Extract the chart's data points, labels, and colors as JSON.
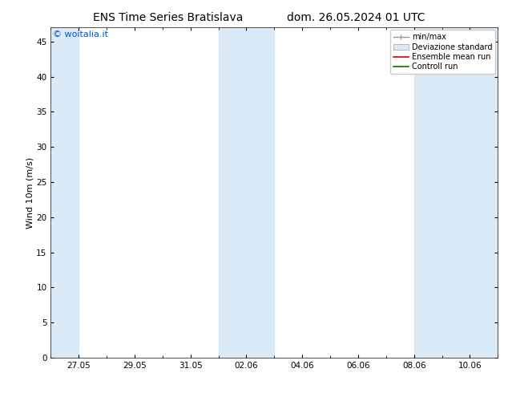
{
  "title": "ENS Time Series Bratislava",
  "title2": "dom. 26.05.2024 01 UTC",
  "ylabel": "Wind 10m (m/s)",
  "ylim": [
    0,
    47
  ],
  "yticks": [
    0,
    5,
    10,
    15,
    20,
    25,
    30,
    35,
    40,
    45
  ],
  "xtick_labels": [
    "27.05",
    "29.05",
    "31.05",
    "02.06",
    "04.06",
    "06.06",
    "08.06",
    "10.06"
  ],
  "xtick_dates": [
    "2024-05-27",
    "2024-05-29",
    "2024-05-31",
    "2024-06-02",
    "2024-06-04",
    "2024-06-06",
    "2024-06-08",
    "2024-06-10"
  ],
  "xmin": "2024-05-26",
  "xmax": "2024-06-11",
  "blue_bands": [
    [
      "2024-05-26",
      "2024-05-27"
    ],
    [
      "2024-06-01",
      "2024-06-03"
    ],
    [
      "2024-06-08",
      "2024-06-11"
    ]
  ],
  "band_color": "#daeaf7",
  "watermark": "© woitalia.it",
  "watermark_color": "#0055cc",
  "legend_minmax_color": "#999999",
  "legend_std_facecolor": "#daeaf7",
  "legend_std_edgecolor": "#aaaaaa",
  "legend_ensemble_color": "#dd0000",
  "legend_control_color": "#007700",
  "fig_color": "#ffffff",
  "plot_bg_color": "#ffffff",
  "title_fontsize": 10,
  "tick_fontsize": 7.5,
  "ylabel_fontsize": 8,
  "watermark_fontsize": 8,
  "legend_fontsize": 7
}
